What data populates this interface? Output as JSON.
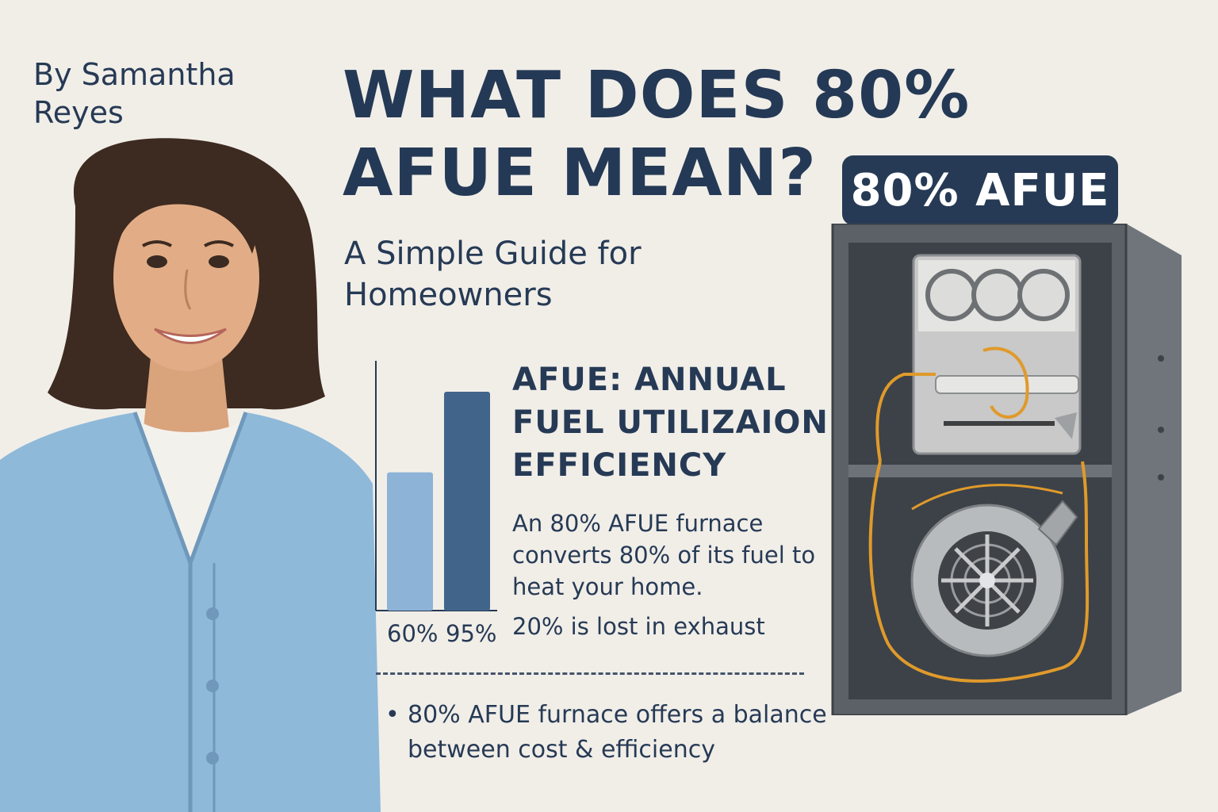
{
  "author": "By Samantha Reyes",
  "title": "WHAT DOES 80% AFUE MEAN?",
  "subtitle": "A Simple Guide for Homeowners",
  "chart_data": {
    "type": "bar",
    "categories": [
      "60%",
      "95%"
    ],
    "values": [
      60,
      95
    ],
    "colors": [
      "#8db3d7",
      "#41648a"
    ]
  },
  "definition": {
    "heading": "AFUE: ANNUAL FUEL UTILIZAION EFFICIENCY",
    "body": "An 80% AFUE furnace converts 80% of its fuel to heat your home.",
    "loss": "20% is lost in exhaust"
  },
  "bullet": {
    "marker": "•",
    "text": "80% AFUE furnace offers a balance between cost & efficiency"
  },
  "badge": "80% AFUE",
  "colors": {
    "background": "#f1eee8",
    "navy": "#263a55",
    "cardigan": "#8fb9d9",
    "wire": "#e09a2b"
  },
  "icons": {
    "portrait": "woman-portrait-illustration",
    "furnace": "furnace-illustration"
  }
}
